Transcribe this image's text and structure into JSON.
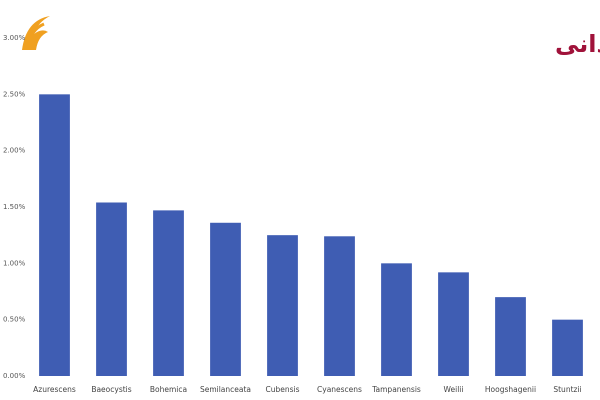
{
  "chart_data": {
    "type": "bar",
    "title": "ده نوع ماجیک ماشروم با بیشترین خاصیت روان‌گردانی",
    "categories": [
      "Azurescens",
      "Baeocystis",
      "Bohemica",
      "Semilanceata",
      "Cubensis",
      "Cyanescens",
      "Tampanensis",
      "Weilii",
      "Hoogshagenii",
      "Stuntzii"
    ],
    "values": [
      2.5,
      1.54,
      1.47,
      1.36,
      1.25,
      1.24,
      1.0,
      0.92,
      0.7,
      0.5
    ],
    "color": "#3f5db3",
    "ylim": [
      0,
      3
    ],
    "yticks": [
      {
        "value": 0,
        "label": "0.00%"
      },
      {
        "value": 0.5,
        "label": "0.50%"
      },
      {
        "value": 1,
        "label": "1.00%"
      },
      {
        "value": 1.5,
        "label": "1.50%"
      },
      {
        "value": 2,
        "label": "2.00%"
      },
      {
        "value": 2.5,
        "label": "2.50%"
      },
      {
        "value": 3,
        "label": "3.00%"
      }
    ],
    "grid": false
  }
}
